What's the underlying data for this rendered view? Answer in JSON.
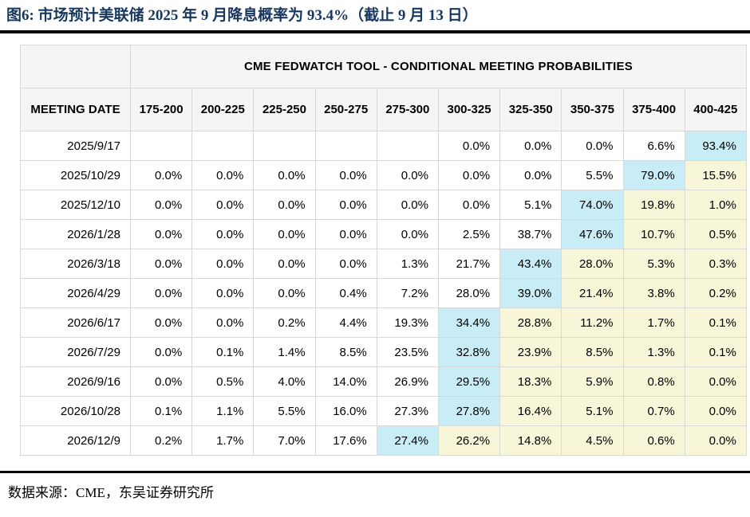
{
  "figure": {
    "title": "图6:  市场预计美联储 2025 年 9 月降息概率为 93.4%（截止 9 月 13 日）",
    "source_note": "数据来源：CME，东吴证券研究所"
  },
  "colors": {
    "title_navy": "#17375E",
    "rule_black": "#000000",
    "header_bg": "#F5F5F5",
    "cell_border": "#D8D8D8",
    "highlight_max_cyan": "#C9EDF6",
    "highlight_tail_yellow": "#F8F6D8"
  },
  "table": {
    "banner": "CME FEDWATCH TOOL - CONDITIONAL MEETING PROBABILITIES",
    "date_header": "MEETING DATE",
    "rate_buckets": [
      "175-200",
      "200-225",
      "225-250",
      "250-275",
      "275-300",
      "300-325",
      "325-350",
      "350-375",
      "375-400",
      "400-425"
    ],
    "rows": [
      {
        "date": "2025/9/17",
        "values": [
          "",
          "",
          "",
          "",
          "",
          "0.0%",
          "0.0%",
          "0.0%",
          "6.6%",
          "93.4%"
        ],
        "max_col": 9
      },
      {
        "date": "2025/10/29",
        "values": [
          "0.0%",
          "0.0%",
          "0.0%",
          "0.0%",
          "0.0%",
          "0.0%",
          "0.0%",
          "5.5%",
          "79.0%",
          "15.5%"
        ],
        "max_col": 8
      },
      {
        "date": "2025/12/10",
        "values": [
          "0.0%",
          "0.0%",
          "0.0%",
          "0.0%",
          "0.0%",
          "0.0%",
          "5.1%",
          "74.0%",
          "19.8%",
          "1.0%"
        ],
        "max_col": 7
      },
      {
        "date": "2026/1/28",
        "values": [
          "0.0%",
          "0.0%",
          "0.0%",
          "0.0%",
          "0.0%",
          "2.5%",
          "38.7%",
          "47.6%",
          "10.7%",
          "0.5%"
        ],
        "max_col": 7
      },
      {
        "date": "2026/3/18",
        "values": [
          "0.0%",
          "0.0%",
          "0.0%",
          "0.0%",
          "1.3%",
          "21.7%",
          "43.4%",
          "28.0%",
          "5.3%",
          "0.3%"
        ],
        "max_col": 6
      },
      {
        "date": "2026/4/29",
        "values": [
          "0.0%",
          "0.0%",
          "0.0%",
          "0.4%",
          "7.2%",
          "28.0%",
          "39.0%",
          "21.4%",
          "3.8%",
          "0.2%"
        ],
        "max_col": 6
      },
      {
        "date": "2026/6/17",
        "values": [
          "0.0%",
          "0.0%",
          "0.2%",
          "4.4%",
          "19.3%",
          "34.4%",
          "28.8%",
          "11.2%",
          "1.7%",
          "0.1%"
        ],
        "max_col": 5
      },
      {
        "date": "2026/7/29",
        "values": [
          "0.0%",
          "0.1%",
          "1.4%",
          "8.5%",
          "23.5%",
          "32.8%",
          "23.9%",
          "8.5%",
          "1.3%",
          "0.1%"
        ],
        "max_col": 5
      },
      {
        "date": "2026/9/16",
        "values": [
          "0.0%",
          "0.5%",
          "4.0%",
          "14.0%",
          "26.9%",
          "29.5%",
          "18.3%",
          "5.9%",
          "0.8%",
          "0.0%"
        ],
        "max_col": 5
      },
      {
        "date": "2026/10/28",
        "values": [
          "0.1%",
          "1.1%",
          "5.5%",
          "16.0%",
          "27.3%",
          "27.8%",
          "16.4%",
          "5.1%",
          "0.7%",
          "0.0%"
        ],
        "max_col": 5
      },
      {
        "date": "2026/12/9",
        "values": [
          "0.2%",
          "1.7%",
          "7.0%",
          "17.6%",
          "27.4%",
          "26.2%",
          "14.8%",
          "4.5%",
          "0.6%",
          "0.0%"
        ],
        "max_col": 4
      }
    ]
  },
  "chart_data": {
    "type": "table",
    "title": "CME FEDWATCH TOOL - CONDITIONAL MEETING PROBABILITIES",
    "caption": "图6:  市场预计美联储 2025 年 9 月降息概率为 93.4%（截止 9 月 13 日）",
    "source": "数据来源：CME，东吴证券研究所",
    "columns": [
      "MEETING DATE",
      "175-200",
      "200-225",
      "225-250",
      "250-275",
      "275-300",
      "300-325",
      "325-350",
      "350-375",
      "375-400",
      "400-425"
    ],
    "rows": [
      [
        "2025/9/17",
        "",
        "",
        "",
        "",
        "",
        "0.0%",
        "0.0%",
        "0.0%",
        "6.6%",
        "93.4%"
      ],
      [
        "2025/10/29",
        "0.0%",
        "0.0%",
        "0.0%",
        "0.0%",
        "0.0%",
        "0.0%",
        "0.0%",
        "5.5%",
        "79.0%",
        "15.5%"
      ],
      [
        "2025/12/10",
        "0.0%",
        "0.0%",
        "0.0%",
        "0.0%",
        "0.0%",
        "0.0%",
        "5.1%",
        "74.0%",
        "19.8%",
        "1.0%"
      ],
      [
        "2026/1/28",
        "0.0%",
        "0.0%",
        "0.0%",
        "0.0%",
        "0.0%",
        "2.5%",
        "38.7%",
        "47.6%",
        "10.7%",
        "0.5%"
      ],
      [
        "2026/3/18",
        "0.0%",
        "0.0%",
        "0.0%",
        "0.0%",
        "1.3%",
        "21.7%",
        "43.4%",
        "28.0%",
        "5.3%",
        "0.3%"
      ],
      [
        "2026/4/29",
        "0.0%",
        "0.0%",
        "0.0%",
        "0.4%",
        "7.2%",
        "28.0%",
        "39.0%",
        "21.4%",
        "3.8%",
        "0.2%"
      ],
      [
        "2026/6/17",
        "0.0%",
        "0.0%",
        "0.2%",
        "4.4%",
        "19.3%",
        "34.4%",
        "28.8%",
        "11.2%",
        "1.7%",
        "0.1%"
      ],
      [
        "2026/7/29",
        "0.0%",
        "0.1%",
        "1.4%",
        "8.5%",
        "23.5%",
        "32.8%",
        "23.9%",
        "8.5%",
        "1.3%",
        "0.1%"
      ],
      [
        "2026/9/16",
        "0.0%",
        "0.5%",
        "4.0%",
        "14.0%",
        "26.9%",
        "29.5%",
        "18.3%",
        "5.9%",
        "0.8%",
        "0.0%"
      ],
      [
        "2026/10/28",
        "0.1%",
        "1.1%",
        "5.5%",
        "16.0%",
        "27.3%",
        "27.8%",
        "16.4%",
        "5.1%",
        "0.7%",
        "0.0%"
      ],
      [
        "2026/12/9",
        "0.2%",
        "1.7%",
        "7.0%",
        "17.6%",
        "27.4%",
        "26.2%",
        "14.8%",
        "4.5%",
        "0.6%",
        "0.0%"
      ]
    ],
    "highlight_rule": "cyan cell = highest probability bucket per meeting date; pale yellow = buckets to the right of the max",
    "legend_position": "none",
    "grid": true
  }
}
